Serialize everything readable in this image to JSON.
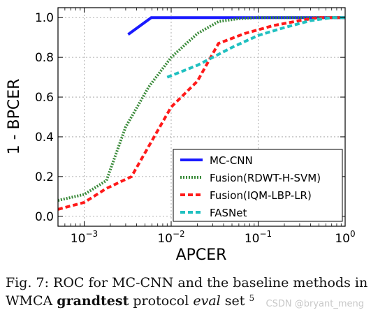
{
  "chart_data": {
    "type": "line",
    "xscale": "log",
    "xlabel": "APCER",
    "ylabel": "1 - BPCER",
    "xlim": [
      0.0005,
      1
    ],
    "ylim": [
      -0.05,
      1.05
    ],
    "grid": true,
    "legend_position": "lower-right",
    "x_ticks": [
      {
        "value": 0.001,
        "base": "10",
        "exp": "−3"
      },
      {
        "value": 0.01,
        "base": "10",
        "exp": "−2"
      },
      {
        "value": 0.1,
        "base": "10",
        "exp": "−1"
      },
      {
        "value": 1,
        "base": "10",
        "exp": "0"
      }
    ],
    "y_ticks": [
      "0.0",
      "0.2",
      "0.4",
      "0.6",
      "0.8",
      "1.0"
    ],
    "series": [
      {
        "name": "MC-CNN",
        "color": "#1a1aff",
        "dash": "solid",
        "x": [
          0.0032,
          0.0059,
          0.02,
          0.1,
          0.5,
          1.0
        ],
        "y": [
          0.915,
          1.0,
          1.0,
          1.0,
          1.0,
          1.0
        ]
      },
      {
        "name": "Fusion(RDWT-H-SVM)",
        "color": "#3a8a3a",
        "dash": "dot",
        "x": [
          0.0005,
          0.001,
          0.0018,
          0.003,
          0.0055,
          0.01,
          0.02,
          0.035,
          0.06,
          0.1,
          0.3,
          1.0
        ],
        "y": [
          0.08,
          0.11,
          0.18,
          0.45,
          0.65,
          0.8,
          0.92,
          0.98,
          0.995,
          1.0,
          1.0,
          1.0
        ]
      },
      {
        "name": "Fusion(IQM-LBP-LR)",
        "color": "#ff1a1a",
        "dash": "dash",
        "x": [
          0.0005,
          0.001,
          0.0018,
          0.0035,
          0.006,
          0.01,
          0.02,
          0.035,
          0.07,
          0.15,
          0.3,
          0.5,
          1.0
        ],
        "y": [
          0.035,
          0.07,
          0.14,
          0.2,
          0.38,
          0.55,
          0.68,
          0.87,
          0.92,
          0.96,
          0.985,
          1.0,
          1.0
        ]
      },
      {
        "name": "FASNet",
        "color": "#20c0c0",
        "dash": "dash",
        "x": [
          0.009,
          0.02,
          0.05,
          0.1,
          0.2,
          0.4,
          0.7,
          1.0
        ],
        "y": [
          0.7,
          0.76,
          0.85,
          0.91,
          0.95,
          0.985,
          1.0,
          1.0
        ]
      }
    ]
  },
  "caption": {
    "prefix": "Fig. 7: ROC for MC-CNN and the baseline methods in WMCA ",
    "bold": "grandtest",
    "middle": " protocol ",
    "italic": "eval",
    "suffix": " set ",
    "footnote": "5"
  },
  "watermark": "CSDN @bryant_meng"
}
